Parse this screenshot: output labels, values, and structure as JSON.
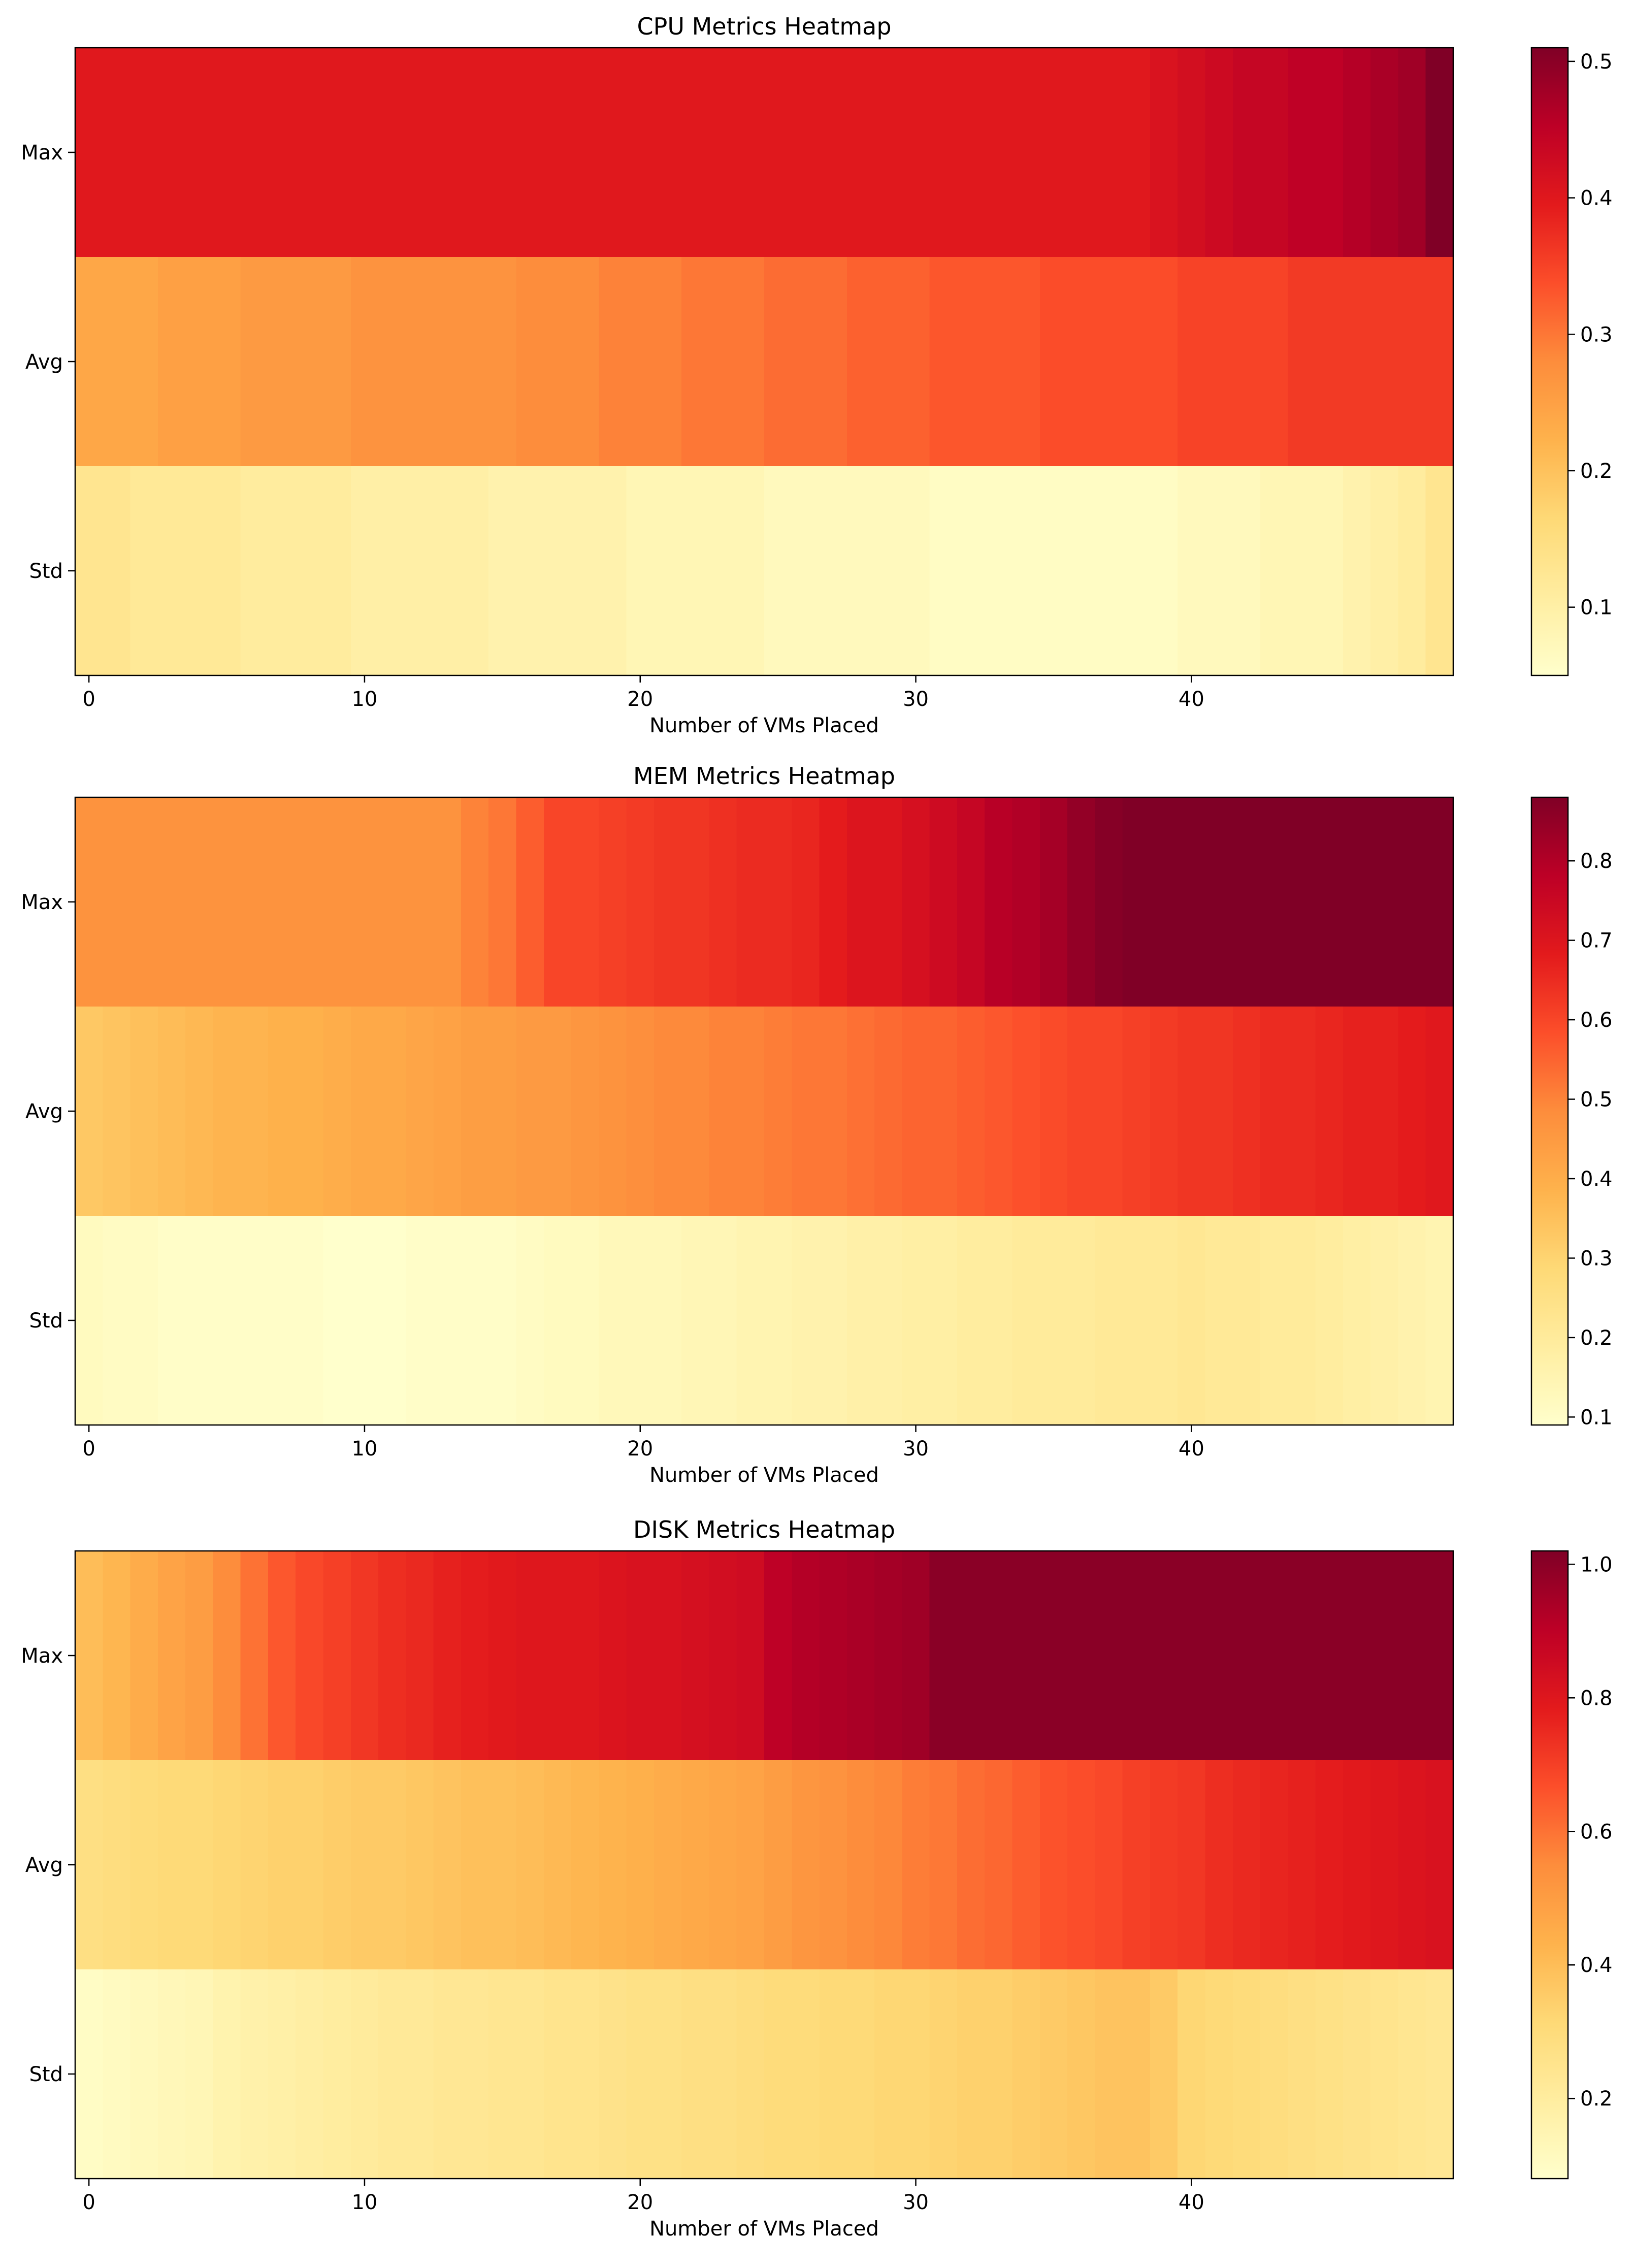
{
  "chart_data": [
    {
      "type": "heatmap",
      "title": "CPU Metrics Heatmap",
      "xlabel": "Number of VMs Placed",
      "ylabel": "",
      "rows": [
        "Max",
        "Avg",
        "Std"
      ],
      "x_ticks": [
        0,
        10,
        20,
        30,
        40
      ],
      "xlim": [
        -0.5,
        49.5
      ],
      "colormap": "YlOrRd",
      "colorbar": {
        "vmin": 0.05,
        "vmax": 0.51,
        "ticks": [
          0.1,
          0.2,
          0.3,
          0.4,
          0.5
        ]
      },
      "values": {
        "Max": [
          0.4,
          0.4,
          0.4,
          0.4,
          0.4,
          0.4,
          0.4,
          0.4,
          0.4,
          0.4,
          0.4,
          0.4,
          0.4,
          0.4,
          0.4,
          0.4,
          0.4,
          0.4,
          0.4,
          0.4,
          0.4,
          0.4,
          0.4,
          0.4,
          0.4,
          0.4,
          0.4,
          0.4,
          0.4,
          0.4,
          0.4,
          0.4,
          0.4,
          0.4,
          0.4,
          0.4,
          0.4,
          0.4,
          0.4,
          0.41,
          0.42,
          0.43,
          0.44,
          0.44,
          0.45,
          0.45,
          0.46,
          0.47,
          0.48,
          0.51
        ],
        "Avg": [
          0.24,
          0.24,
          0.24,
          0.25,
          0.25,
          0.25,
          0.26,
          0.26,
          0.26,
          0.26,
          0.27,
          0.27,
          0.27,
          0.27,
          0.27,
          0.27,
          0.28,
          0.28,
          0.28,
          0.29,
          0.29,
          0.29,
          0.3,
          0.3,
          0.3,
          0.31,
          0.31,
          0.31,
          0.32,
          0.32,
          0.32,
          0.33,
          0.33,
          0.33,
          0.33,
          0.34,
          0.34,
          0.34,
          0.34,
          0.34,
          0.35,
          0.35,
          0.35,
          0.35,
          0.36,
          0.36,
          0.36,
          0.36,
          0.36,
          0.36
        ],
        "Std": [
          0.13,
          0.13,
          0.12,
          0.12,
          0.12,
          0.12,
          0.11,
          0.11,
          0.11,
          0.11,
          0.1,
          0.1,
          0.1,
          0.1,
          0.1,
          0.09,
          0.09,
          0.09,
          0.09,
          0.09,
          0.08,
          0.08,
          0.08,
          0.08,
          0.08,
          0.07,
          0.07,
          0.07,
          0.07,
          0.07,
          0.07,
          0.06,
          0.06,
          0.06,
          0.06,
          0.06,
          0.06,
          0.06,
          0.06,
          0.06,
          0.07,
          0.07,
          0.07,
          0.08,
          0.08,
          0.08,
          0.09,
          0.1,
          0.11,
          0.13
        ]
      }
    },
    {
      "type": "heatmap",
      "title": "MEM Metrics Heatmap",
      "xlabel": "Number of VMs Placed",
      "ylabel": "",
      "rows": [
        "Max",
        "Avg",
        "Std"
      ],
      "x_ticks": [
        0,
        10,
        20,
        30,
        40
      ],
      "xlim": [
        -0.5,
        49.5
      ],
      "colormap": "YlOrRd",
      "colorbar": {
        "vmin": 0.09,
        "vmax": 0.88,
        "ticks": [
          0.1,
          0.2,
          0.3,
          0.4,
          0.5,
          0.6,
          0.7,
          0.8
        ]
      },
      "values": {
        "Max": [
          0.47,
          0.47,
          0.47,
          0.47,
          0.47,
          0.47,
          0.47,
          0.47,
          0.47,
          0.47,
          0.47,
          0.47,
          0.47,
          0.47,
          0.5,
          0.52,
          0.56,
          0.6,
          0.6,
          0.61,
          0.62,
          0.63,
          0.63,
          0.64,
          0.65,
          0.65,
          0.66,
          0.68,
          0.7,
          0.7,
          0.72,
          0.74,
          0.76,
          0.79,
          0.8,
          0.82,
          0.85,
          0.87,
          0.88,
          0.88,
          0.88,
          0.88,
          0.88,
          0.88,
          0.88,
          0.88,
          0.88,
          0.88,
          0.88,
          0.88
        ],
        "Avg": [
          0.33,
          0.34,
          0.35,
          0.36,
          0.37,
          0.38,
          0.38,
          0.39,
          0.39,
          0.4,
          0.41,
          0.41,
          0.42,
          0.43,
          0.44,
          0.44,
          0.45,
          0.45,
          0.46,
          0.47,
          0.48,
          0.49,
          0.49,
          0.5,
          0.5,
          0.51,
          0.52,
          0.52,
          0.53,
          0.54,
          0.55,
          0.55,
          0.56,
          0.57,
          0.58,
          0.59,
          0.6,
          0.6,
          0.61,
          0.62,
          0.63,
          0.63,
          0.64,
          0.65,
          0.65,
          0.66,
          0.67,
          0.67,
          0.68,
          0.69
        ],
        "Std": [
          0.12,
          0.11,
          0.11,
          0.1,
          0.1,
          0.1,
          0.1,
          0.1,
          0.1,
          0.09,
          0.09,
          0.09,
          0.1,
          0.1,
          0.1,
          0.1,
          0.11,
          0.12,
          0.12,
          0.13,
          0.13,
          0.13,
          0.14,
          0.14,
          0.15,
          0.15,
          0.16,
          0.16,
          0.17,
          0.17,
          0.18,
          0.18,
          0.19,
          0.19,
          0.2,
          0.2,
          0.2,
          0.21,
          0.21,
          0.21,
          0.22,
          0.21,
          0.21,
          0.2,
          0.2,
          0.19,
          0.18,
          0.17,
          0.16,
          0.15
        ]
      }
    },
    {
      "type": "heatmap",
      "title": "DISK Metrics Heatmap",
      "xlabel": "Number of VMs Placed",
      "ylabel": "",
      "rows": [
        "Max",
        "Avg",
        "Std"
      ],
      "x_ticks": [
        0,
        10,
        20,
        30,
        40
      ],
      "xlim": [
        -0.5,
        49.5
      ],
      "colormap": "YlOrRd",
      "colorbar": {
        "vmin": 0.08,
        "vmax": 1.02,
        "ticks": [
          0.2,
          0.4,
          0.6,
          0.8,
          1.0
        ]
      },
      "values": {
        "Max": [
          0.4,
          0.42,
          0.45,
          0.48,
          0.5,
          0.55,
          0.6,
          0.65,
          0.68,
          0.7,
          0.72,
          0.74,
          0.75,
          0.77,
          0.78,
          0.79,
          0.8,
          0.8,
          0.8,
          0.81,
          0.82,
          0.82,
          0.83,
          0.84,
          0.85,
          0.9,
          0.92,
          0.93,
          0.94,
          0.95,
          0.96,
          1.0,
          1.0,
          1.0,
          1.0,
          1.0,
          1.0,
          1.0,
          1.0,
          1.0,
          1.0,
          1.0,
          1.0,
          1.0,
          1.0,
          1.0,
          1.0,
          1.0,
          1.0,
          1.0
        ],
        "Avg": [
          0.28,
          0.29,
          0.3,
          0.31,
          0.31,
          0.32,
          0.33,
          0.34,
          0.34,
          0.35,
          0.36,
          0.36,
          0.37,
          0.38,
          0.39,
          0.39,
          0.4,
          0.41,
          0.42,
          0.43,
          0.44,
          0.45,
          0.46,
          0.47,
          0.48,
          0.5,
          0.52,
          0.53,
          0.55,
          0.56,
          0.58,
          0.59,
          0.61,
          0.62,
          0.64,
          0.66,
          0.67,
          0.68,
          0.7,
          0.71,
          0.72,
          0.74,
          0.75,
          0.76,
          0.77,
          0.78,
          0.79,
          0.8,
          0.81,
          0.82
        ],
        "Std": [
          0.1,
          0.11,
          0.12,
          0.13,
          0.14,
          0.16,
          0.17,
          0.18,
          0.19,
          0.2,
          0.21,
          0.22,
          0.22,
          0.23,
          0.23,
          0.24,
          0.24,
          0.25,
          0.25,
          0.26,
          0.27,
          0.27,
          0.28,
          0.28,
          0.29,
          0.3,
          0.3,
          0.31,
          0.31,
          0.32,
          0.32,
          0.33,
          0.34,
          0.34,
          0.35,
          0.36,
          0.37,
          0.38,
          0.38,
          0.36,
          0.32,
          0.31,
          0.3,
          0.29,
          0.28,
          0.27,
          0.26,
          0.25,
          0.24,
          0.23
        ]
      }
    }
  ]
}
